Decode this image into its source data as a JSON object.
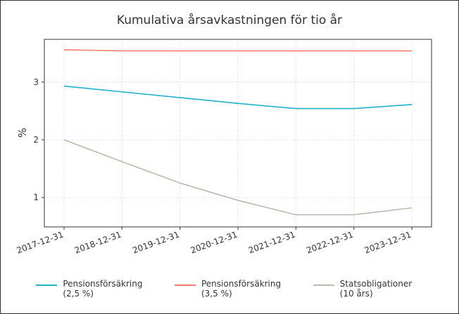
{
  "chart_data": {
    "type": "line",
    "title": "Kumulativa årsavkastningen för tio år",
    "y_label": "%",
    "x": [
      "2017-12-31",
      "2018-12-31",
      "2019-12-31",
      "2020-12-31",
      "2021-12-31",
      "2022-12-31",
      "2023-12-31"
    ],
    "series": [
      {
        "name": "Pensionsförsäkring (2,5 %)",
        "color": "#1fb2cc",
        "values": [
          2.93,
          2.83,
          2.73,
          2.63,
          2.54,
          2.54,
          2.61
        ]
      },
      {
        "name": "Pensionsförsäkring (3,5 %)",
        "color": "#f47f6b",
        "values": [
          3.56,
          3.54,
          3.54,
          3.54,
          3.54,
          3.54,
          3.54
        ]
      },
      {
        "name": "Statsobligationer (10 års)",
        "color": "#bdb8ab",
        "values": [
          2.0,
          1.62,
          1.25,
          0.95,
          0.7,
          0.7,
          0.82
        ]
      }
    ],
    "ylim": [
      0.49,
      3.74
    ],
    "yticks": [
      1,
      2,
      3
    ],
    "grid": true
  }
}
